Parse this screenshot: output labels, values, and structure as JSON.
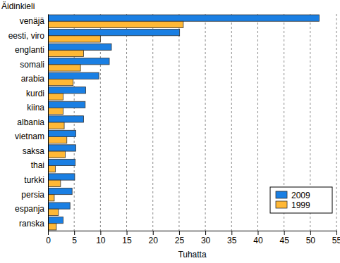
{
  "chart_data": {
    "type": "bar",
    "orientation": "horizontal",
    "ylabel": "Äidinkieli",
    "xlabel": "Tuhatta",
    "categories": [
      "venäjä",
      "eesti, viro",
      "englanti",
      "somali",
      "arabia",
      "kurdi",
      "kiina",
      "albania",
      "vietnam",
      "saksa",
      "thai",
      "turkki",
      "persia",
      "espanja",
      "ranska"
    ],
    "series": [
      {
        "name": "2009",
        "color": "#1a7fe3",
        "values": [
          51.7,
          25.1,
          12.1,
          11.7,
          9.7,
          7.2,
          7.1,
          6.8,
          5.3,
          5.3,
          5.2,
          5.1,
          4.6,
          4.2,
          2.9
        ]
      },
      {
        "name": "1999",
        "color": "#ffb836",
        "values": [
          25.8,
          10.0,
          6.8,
          6.2,
          4.8,
          2.9,
          2.9,
          3.1,
          3.6,
          3.3,
          1.4,
          2.4,
          1.2,
          2.0,
          1.6
        ]
      }
    ],
    "xlim": [
      0,
      55
    ],
    "xticks": [
      0,
      5,
      10,
      15,
      20,
      25,
      30,
      35,
      40,
      45,
      50,
      55
    ],
    "grid": true,
    "legend": "lower right"
  }
}
